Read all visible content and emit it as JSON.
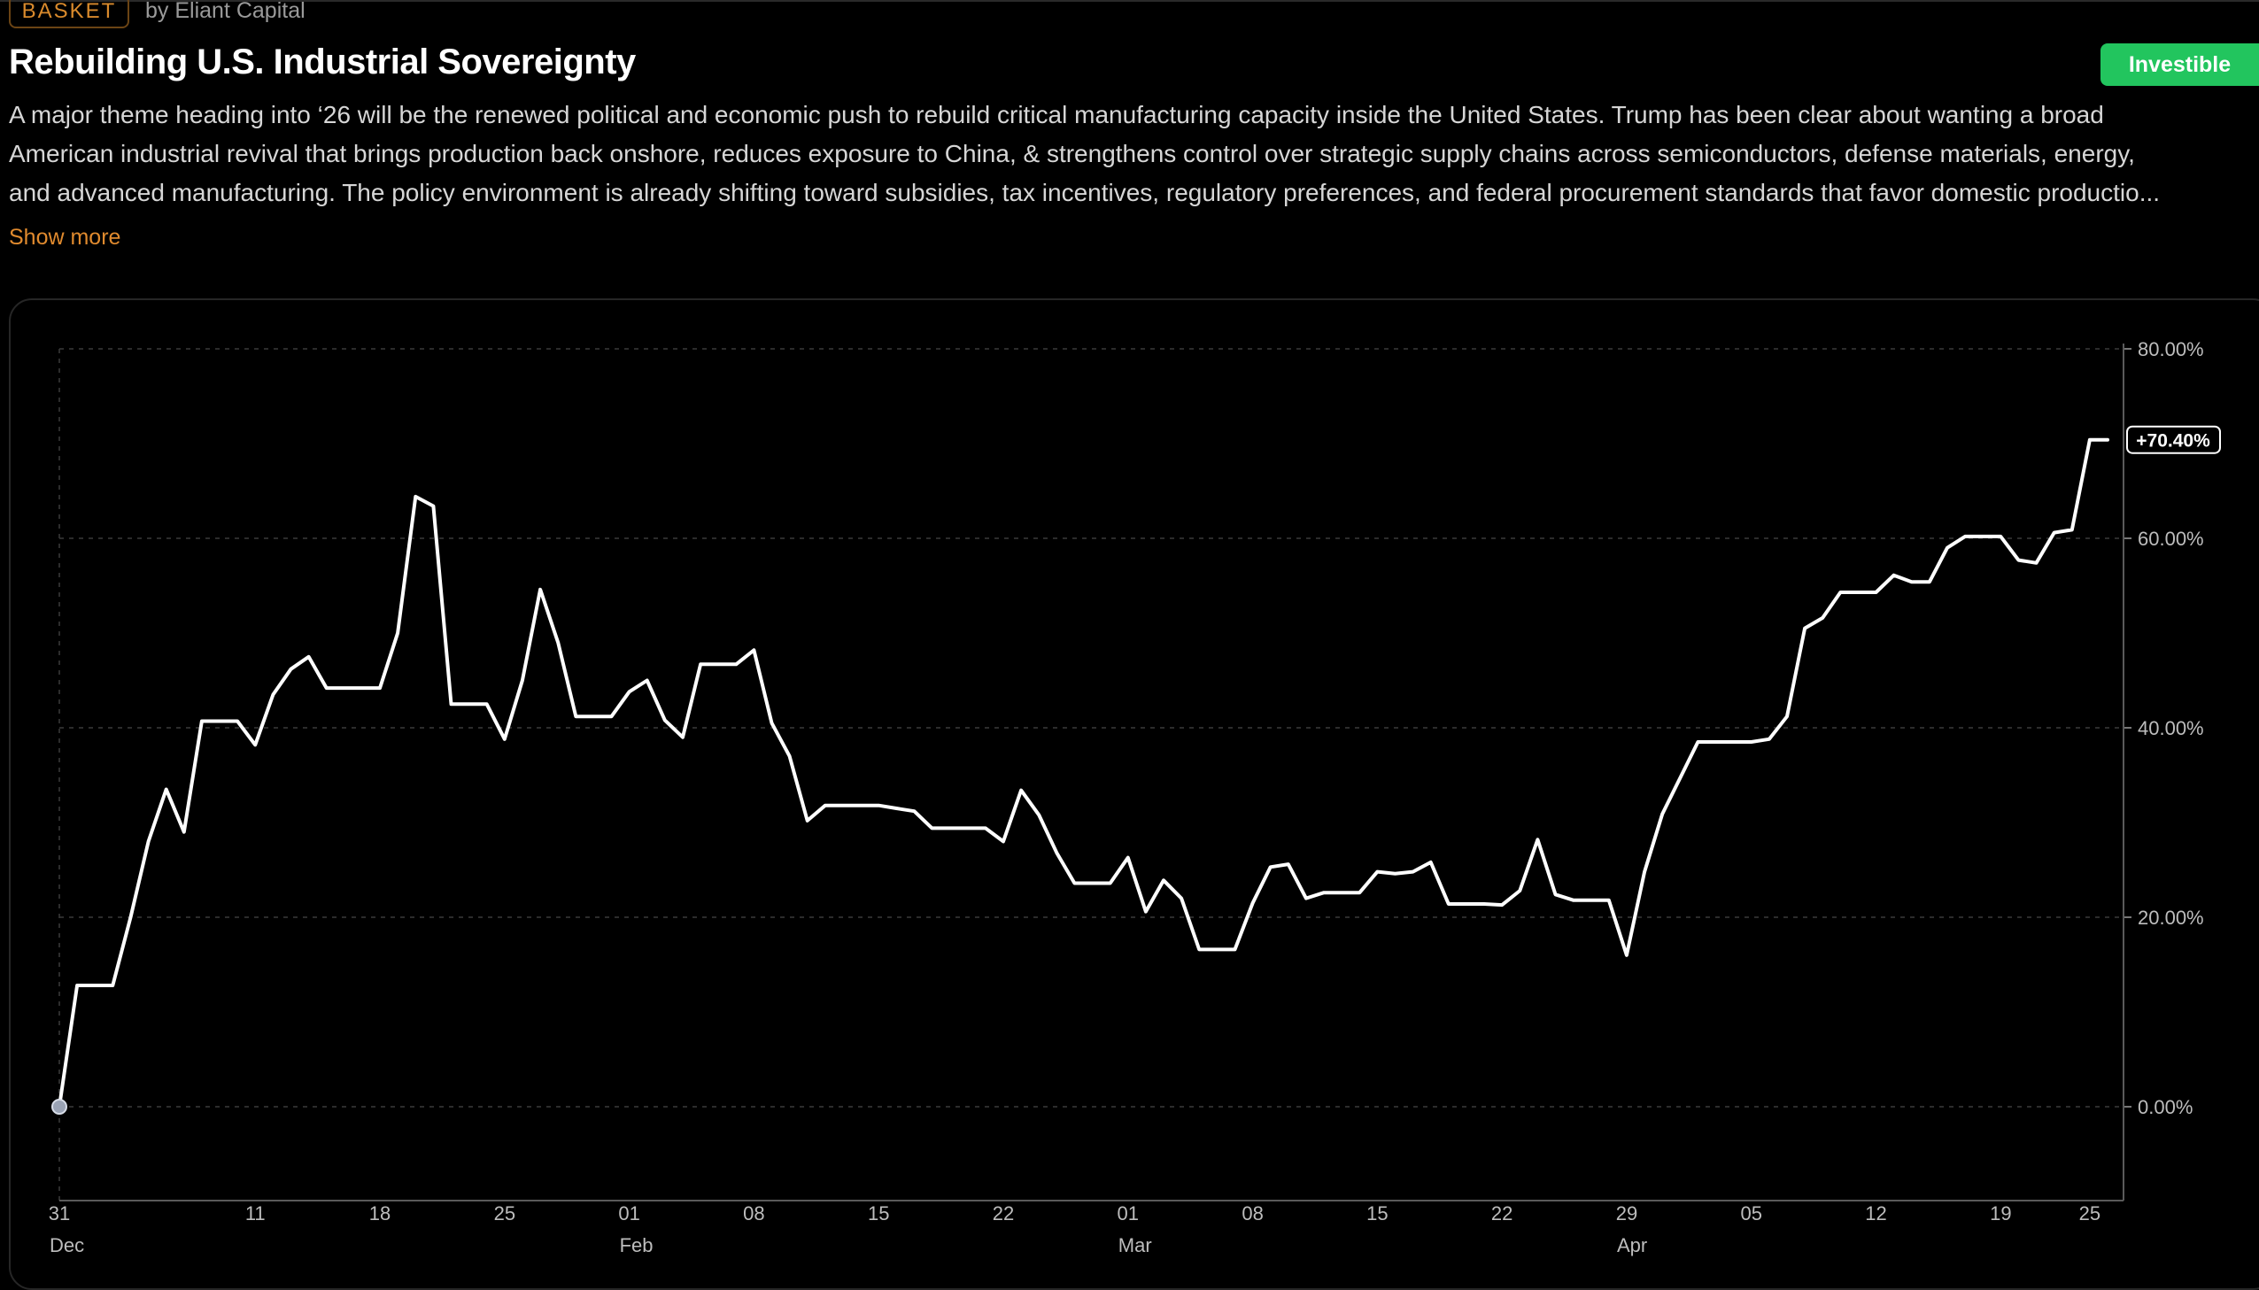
{
  "header": {
    "badge": "BASKET",
    "byline": "by Eliant Capital",
    "title": "Rebuilding U.S. Industrial Sovereignty",
    "status_button": "Investible"
  },
  "description": {
    "lines": [
      "A major theme heading into ‘26 will be the renewed political and economic push to rebuild critical manufacturing capacity inside the United States. Trump has been clear about wanting a broad",
      "American industrial revival that brings production back onshore, reduces exposure to China, & strengthens control over strategic supply chains across semiconductors, defense materials, energy,",
      "and advanced manufacturing. The policy environment is already shifting toward subsidies, tax incentives, regulatory preferences, and federal procurement standards that favor domestic productio..."
    ],
    "show_more": "Show more"
  },
  "colors": {
    "accent_orange": "#e08a2e",
    "investible_green": "#22c55e",
    "line": "#ffffff",
    "background": "#000000"
  },
  "chart_data": {
    "type": "line",
    "title": "",
    "xlabel": "",
    "ylabel": "",
    "ylim": [
      -10,
      80
    ],
    "y_ticks": [
      0,
      20,
      40,
      60,
      80
    ],
    "y_tick_labels": [
      "0.00%",
      "20.00%",
      "40.00%",
      "60.00%",
      "80.00%"
    ],
    "last_value_label": "+70.40%",
    "x_tick_labels": [
      "31",
      "11",
      "18",
      "25",
      "01",
      "08",
      "15",
      "22",
      "01",
      "08",
      "15",
      "22",
      "29",
      "05",
      "12",
      "19",
      "25"
    ],
    "x_tick_days": [
      0,
      11,
      18,
      25,
      32,
      39,
      46,
      53,
      60,
      67,
      74,
      81,
      88,
      95,
      102,
      109,
      114
    ],
    "month_labels": [
      {
        "label": "Dec",
        "day": 0
      },
      {
        "label": "Feb",
        "day": 32
      },
      {
        "label": "Mar",
        "day": 60
      },
      {
        "label": "Apr",
        "day": 88
      }
    ],
    "x_domain": [
      0,
      115
    ],
    "series": [
      {
        "name": "Rebuilding U.S. Industrial Sovereignty",
        "points": [
          [
            0,
            0.0
          ],
          [
            1,
            12.8
          ],
          [
            2,
            12.8
          ],
          [
            3,
            12.8
          ],
          [
            4,
            20.0
          ],
          [
            5,
            28.0
          ],
          [
            6,
            33.5
          ],
          [
            7,
            29.0
          ],
          [
            8,
            40.7
          ],
          [
            9,
            40.7
          ],
          [
            10,
            40.7
          ],
          [
            11,
            38.2
          ],
          [
            12,
            43.5
          ],
          [
            13,
            46.2
          ],
          [
            14,
            47.5
          ],
          [
            15,
            44.2
          ],
          [
            16,
            44.2
          ],
          [
            17,
            44.2
          ],
          [
            18,
            44.2
          ],
          [
            19,
            50.0
          ],
          [
            20,
            64.4
          ],
          [
            21,
            63.4
          ],
          [
            22,
            42.5
          ],
          [
            23,
            42.5
          ],
          [
            24,
            42.5
          ],
          [
            25,
            38.8
          ],
          [
            26,
            45.0
          ],
          [
            27,
            54.6
          ],
          [
            28,
            49.0
          ],
          [
            29,
            41.2
          ],
          [
            30,
            41.2
          ],
          [
            31,
            41.2
          ],
          [
            32,
            43.8
          ],
          [
            33,
            45.0
          ],
          [
            34,
            40.8
          ],
          [
            35,
            39.0
          ],
          [
            36,
            46.7
          ],
          [
            37,
            46.7
          ],
          [
            38,
            46.7
          ],
          [
            39,
            48.2
          ],
          [
            40,
            40.5
          ],
          [
            41,
            37.0
          ],
          [
            42,
            30.2
          ],
          [
            43,
            31.8
          ],
          [
            44,
            31.8
          ],
          [
            45,
            31.8
          ],
          [
            46,
            31.8
          ],
          [
            47,
            31.5
          ],
          [
            48,
            31.2
          ],
          [
            49,
            29.4
          ],
          [
            50,
            29.4
          ],
          [
            51,
            29.4
          ],
          [
            52,
            29.4
          ],
          [
            53,
            28.0
          ],
          [
            54,
            33.4
          ],
          [
            55,
            30.8
          ],
          [
            56,
            26.8
          ],
          [
            57,
            23.6
          ],
          [
            58,
            23.6
          ],
          [
            59,
            23.6
          ],
          [
            60,
            26.3
          ],
          [
            61,
            20.6
          ],
          [
            62,
            23.9
          ],
          [
            63,
            22.0
          ],
          [
            64,
            16.6
          ],
          [
            65,
            16.6
          ],
          [
            66,
            16.6
          ],
          [
            67,
            21.5
          ],
          [
            68,
            25.3
          ],
          [
            69,
            25.6
          ],
          [
            70,
            22.0
          ],
          [
            71,
            22.6
          ],
          [
            72,
            22.6
          ],
          [
            73,
            22.6
          ],
          [
            74,
            24.8
          ],
          [
            75,
            24.6
          ],
          [
            76,
            24.8
          ],
          [
            77,
            25.8
          ],
          [
            78,
            21.4
          ],
          [
            79,
            21.4
          ],
          [
            80,
            21.4
          ],
          [
            81,
            21.3
          ],
          [
            82,
            22.8
          ],
          [
            83,
            28.2
          ],
          [
            84,
            22.4
          ],
          [
            85,
            21.8
          ],
          [
            86,
            21.8
          ],
          [
            87,
            21.8
          ],
          [
            88,
            16.0
          ],
          [
            89,
            24.8
          ],
          [
            90,
            30.9
          ],
          [
            91,
            34.7
          ],
          [
            92,
            38.5
          ],
          [
            93,
            38.5
          ],
          [
            94,
            38.5
          ],
          [
            95,
            38.5
          ],
          [
            96,
            38.8
          ],
          [
            97,
            41.2
          ],
          [
            98,
            50.5
          ],
          [
            99,
            51.6
          ],
          [
            100,
            54.3
          ],
          [
            101,
            54.3
          ],
          [
            102,
            54.3
          ],
          [
            103,
            56.1
          ],
          [
            104,
            55.4
          ],
          [
            105,
            55.4
          ],
          [
            106,
            59.0
          ],
          [
            107,
            60.2
          ],
          [
            108,
            60.2
          ],
          [
            109,
            60.2
          ],
          [
            110,
            57.7
          ],
          [
            111,
            57.4
          ],
          [
            112,
            60.6
          ],
          [
            113,
            60.9
          ],
          [
            114,
            70.4
          ],
          [
            115,
            70.4
          ]
        ]
      }
    ]
  }
}
